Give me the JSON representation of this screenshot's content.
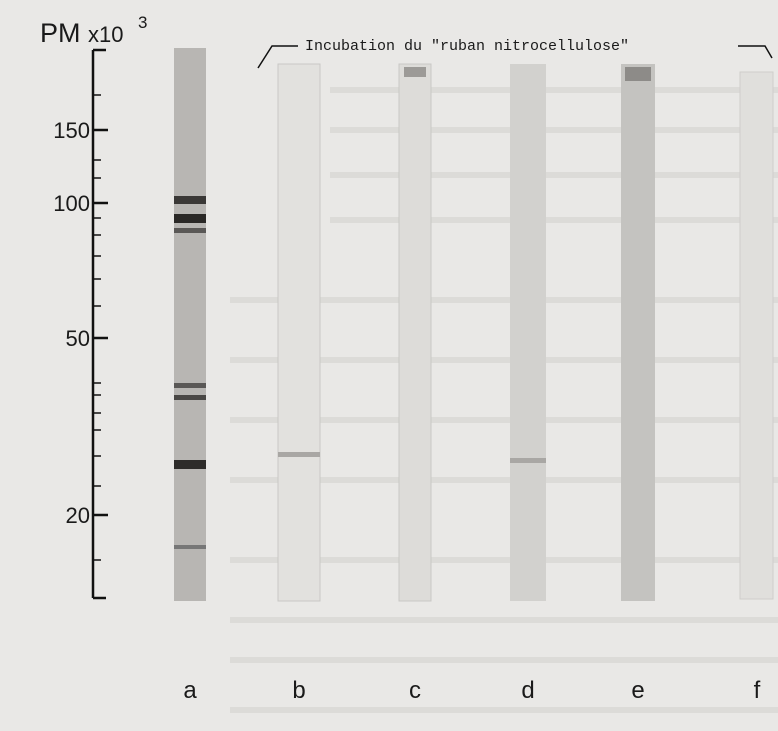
{
  "axis": {
    "label": "PM",
    "unit": "x10",
    "exponent": "3",
    "ticks": [
      150,
      100,
      50,
      20
    ]
  },
  "header": "Incubation du \"ruban nitrocellulose\"",
  "lanes": [
    "a",
    "b",
    "c",
    "d",
    "e",
    "f"
  ]
}
